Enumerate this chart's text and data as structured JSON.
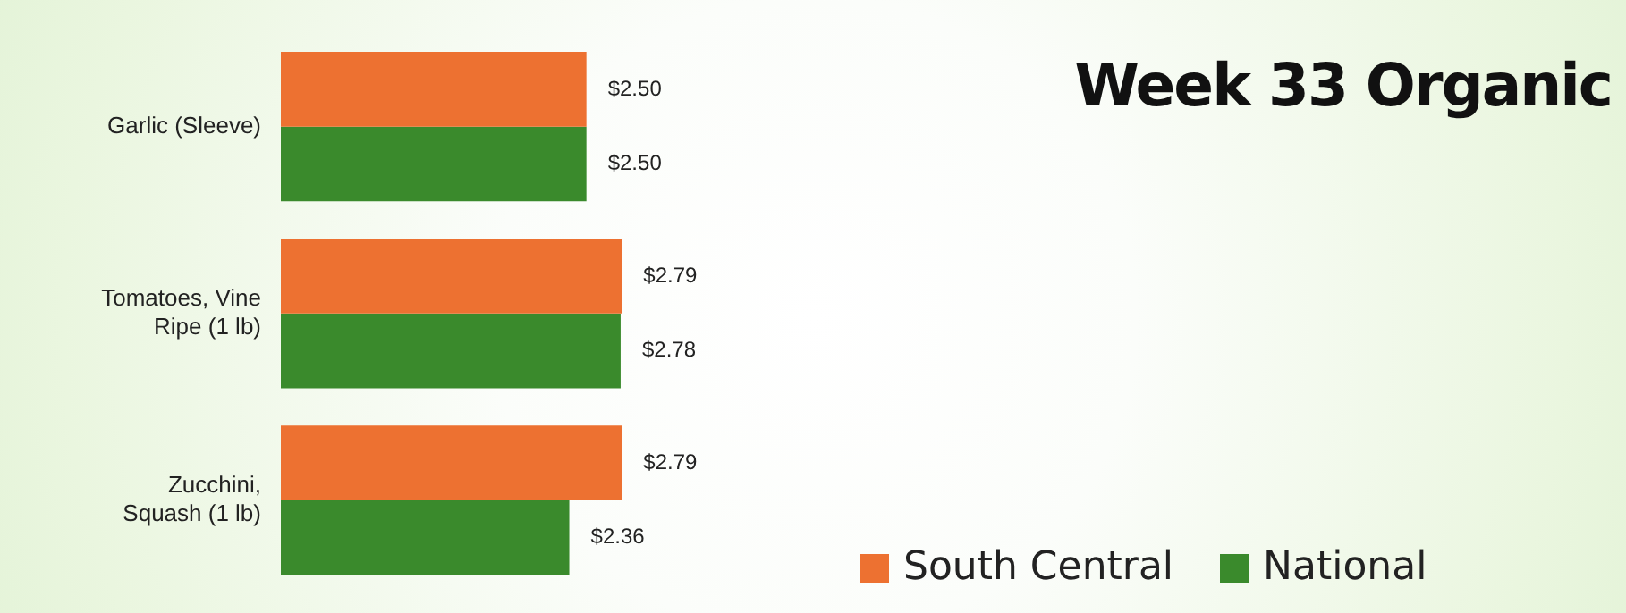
{
  "chart_data": {
    "type": "bar",
    "orientation": "horizontal",
    "title": "Week 33 Organic",
    "categories": [
      "Garlic (Sleeve)",
      "Tomatoes, Vine Ripe (1 lb)",
      "Zucchini, Squash (1 lb)"
    ],
    "series": [
      {
        "name": "South Central",
        "color": "#ed7131",
        "values": [
          2.5,
          2.79,
          2.79
        ],
        "value_labels": [
          "$2.50",
          "$2.79",
          "$2.79"
        ]
      },
      {
        "name": "National",
        "color": "#3a8a2c",
        "values": [
          2.5,
          2.78,
          2.36
        ],
        "value_labels": [
          "$2.50",
          "$2.78",
          "$2.36"
        ]
      }
    ],
    "legend": "bottom right"
  }
}
